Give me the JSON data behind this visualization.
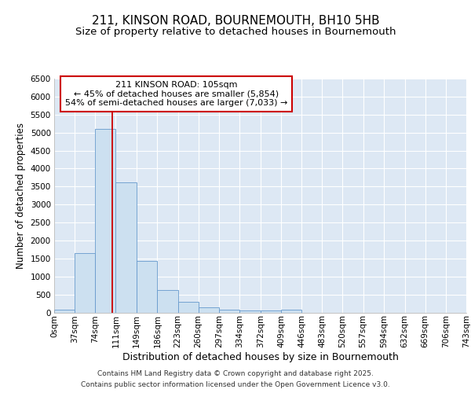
{
  "title1": "211, KINSON ROAD, BOURNEMOUTH, BH10 5HB",
  "title2": "Size of property relative to detached houses in Bournemouth",
  "xlabel": "Distribution of detached houses by size in Bournemouth",
  "ylabel": "Number of detached properties",
  "bin_edges": [
    0,
    37,
    74,
    111,
    149,
    186,
    223,
    260,
    297,
    334,
    372,
    409,
    446,
    483,
    520,
    557,
    594,
    632,
    669,
    706,
    743
  ],
  "bar_heights": [
    75,
    1650,
    5100,
    3625,
    1425,
    620,
    305,
    135,
    75,
    50,
    50,
    75,
    0,
    0,
    0,
    0,
    0,
    0,
    0,
    0
  ],
  "bar_color": "#cce0f0",
  "bar_edge_color": "#6699cc",
  "property_size": 105,
  "vline_color": "#cc0000",
  "annotation_text": "211 KINSON ROAD: 105sqm\n← 45% of detached houses are smaller (5,854)\n54% of semi-detached houses are larger (7,033) →",
  "annotation_box_color": "#cc0000",
  "ylim": [
    0,
    6500
  ],
  "yticks": [
    0,
    500,
    1000,
    1500,
    2000,
    2500,
    3000,
    3500,
    4000,
    4500,
    5000,
    5500,
    6000,
    6500
  ],
  "bg_color": "#dde8f4",
  "grid_color": "#ffffff",
  "footer1": "Contains HM Land Registry data © Crown copyright and database right 2025.",
  "footer2": "Contains public sector information licensed under the Open Government Licence v3.0.",
  "title1_fontsize": 11,
  "title2_fontsize": 9.5,
  "tick_fontsize": 7.5,
  "ylabel_fontsize": 8.5,
  "xlabel_fontsize": 9,
  "footer_fontsize": 6.5,
  "annot_fontsize": 8.0
}
